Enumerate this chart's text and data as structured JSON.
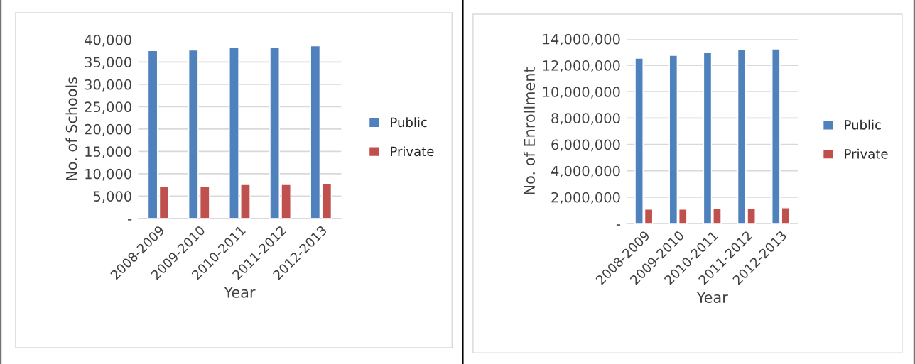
{
  "chart_data": [
    {
      "type": "bar",
      "xlabel": "Year",
      "ylabel": "No. of Schools",
      "categories": [
        "2008-2009",
        "2009-2010",
        "2010-2011",
        "2011-2012",
        "2012-2013"
      ],
      "series": [
        {
          "name": "Public",
          "color": "#4f81bd",
          "values": [
            37560,
            37660,
            38250,
            38350,
            38620
          ]
        },
        {
          "name": "Private",
          "color": "#c0504d",
          "values": [
            7070,
            7070,
            7600,
            7600,
            7700
          ]
        }
      ],
      "ylim": [
        0,
        40000
      ],
      "yticks": [
        {
          "value": 0,
          "label": "-"
        },
        {
          "value": 5000,
          "label": "5,000"
        },
        {
          "value": 10000,
          "label": "10,000"
        },
        {
          "value": 15000,
          "label": "15,000"
        },
        {
          "value": 20000,
          "label": "20,000"
        },
        {
          "value": 25000,
          "label": "25,000"
        },
        {
          "value": 30000,
          "label": "30,000"
        },
        {
          "value": 35000,
          "label": "35,000"
        },
        {
          "value": 40000,
          "label": "40,000"
        }
      ],
      "grid": "y",
      "legend": "right"
    },
    {
      "type": "bar",
      "xlabel": "Year",
      "ylabel": "No. of Enrollment",
      "categories": [
        "2008-2009",
        "2009-2010",
        "2010-2011",
        "2011-2012",
        "2012-2013"
      ],
      "series": [
        {
          "name": "Public",
          "color": "#4f81bd",
          "values": [
            12540000,
            12750000,
            13000000,
            13200000,
            13240000
          ]
        },
        {
          "name": "Private",
          "color": "#c0504d",
          "values": [
            1080000,
            1080000,
            1120000,
            1150000,
            1190000
          ]
        }
      ],
      "ylim": [
        0,
        14000000
      ],
      "yticks": [
        {
          "value": 0,
          "label": "-"
        },
        {
          "value": 2000000,
          "label": "2,000,000"
        },
        {
          "value": 4000000,
          "label": "4,000,000"
        },
        {
          "value": 6000000,
          "label": "6,000,000"
        },
        {
          "value": 8000000,
          "label": "8,000,000"
        },
        {
          "value": 10000000,
          "label": "10,000,000"
        },
        {
          "value": 12000000,
          "label": "12,000,000"
        },
        {
          "value": 14000000,
          "label": "14,000,000"
        }
      ],
      "grid": "y",
      "legend": "right"
    }
  ]
}
